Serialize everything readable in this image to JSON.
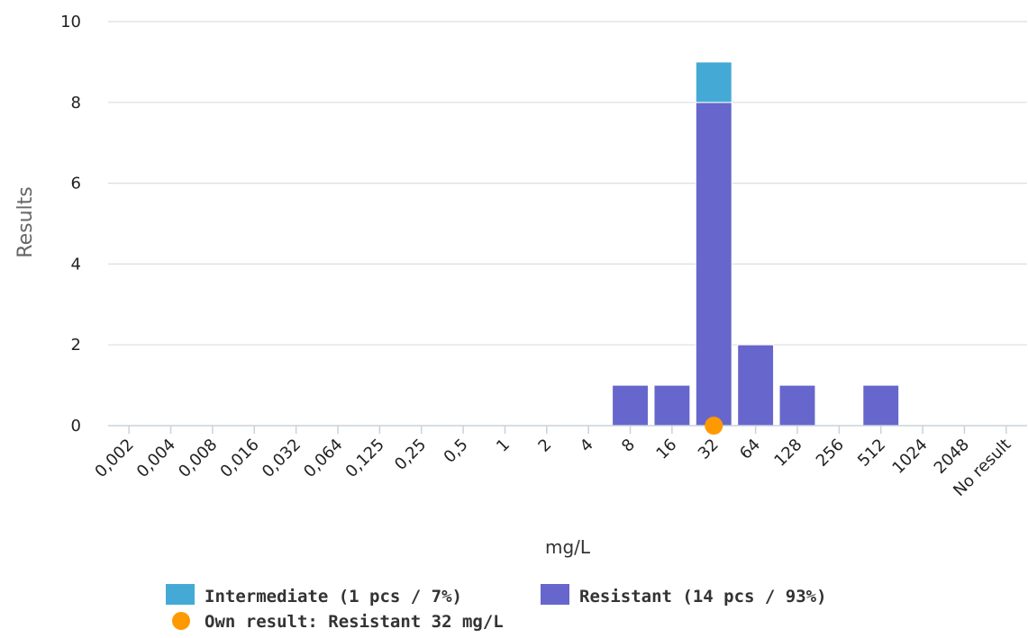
{
  "chart_data": {
    "type": "bar",
    "stacked": true,
    "title": "",
    "xlabel": "mg/L",
    "ylabel": "Results",
    "ylim": [
      0,
      10
    ],
    "yticks": [
      0,
      2,
      4,
      6,
      8,
      10
    ],
    "grid": true,
    "legend_position": "bottom",
    "categories": [
      "0,002",
      "0,004",
      "0,008",
      "0,016",
      "0,032",
      "0,064",
      "0,125",
      "0,25",
      "0,5",
      "1",
      "2",
      "4",
      "8",
      "16",
      "32",
      "64",
      "128",
      "256",
      "512",
      "1024",
      "2048",
      "No result"
    ],
    "series": [
      {
        "name": "Resistant",
        "legend_label": "Resistant (14 pcs / 93%)",
        "color": "#6666cc",
        "values": [
          0,
          0,
          0,
          0,
          0,
          0,
          0,
          0,
          0,
          0,
          0,
          0,
          1,
          1,
          8,
          2,
          1,
          0,
          1,
          0,
          0,
          0
        ]
      },
      {
        "name": "Intermediate",
        "legend_label": "Intermediate (1 pcs / 7%)",
        "color": "#44aad5",
        "values": [
          0,
          0,
          0,
          0,
          0,
          0,
          0,
          0,
          0,
          0,
          0,
          0,
          0,
          0,
          1,
          0,
          0,
          0,
          0,
          0,
          0,
          0
        ]
      }
    ],
    "own_result": {
      "legend_label": "Own result: Resistant 32 mg/L",
      "category": "32",
      "value": 0,
      "color": "#ff9900"
    },
    "legend_order": [
      "Intermediate",
      "Resistant"
    ]
  }
}
